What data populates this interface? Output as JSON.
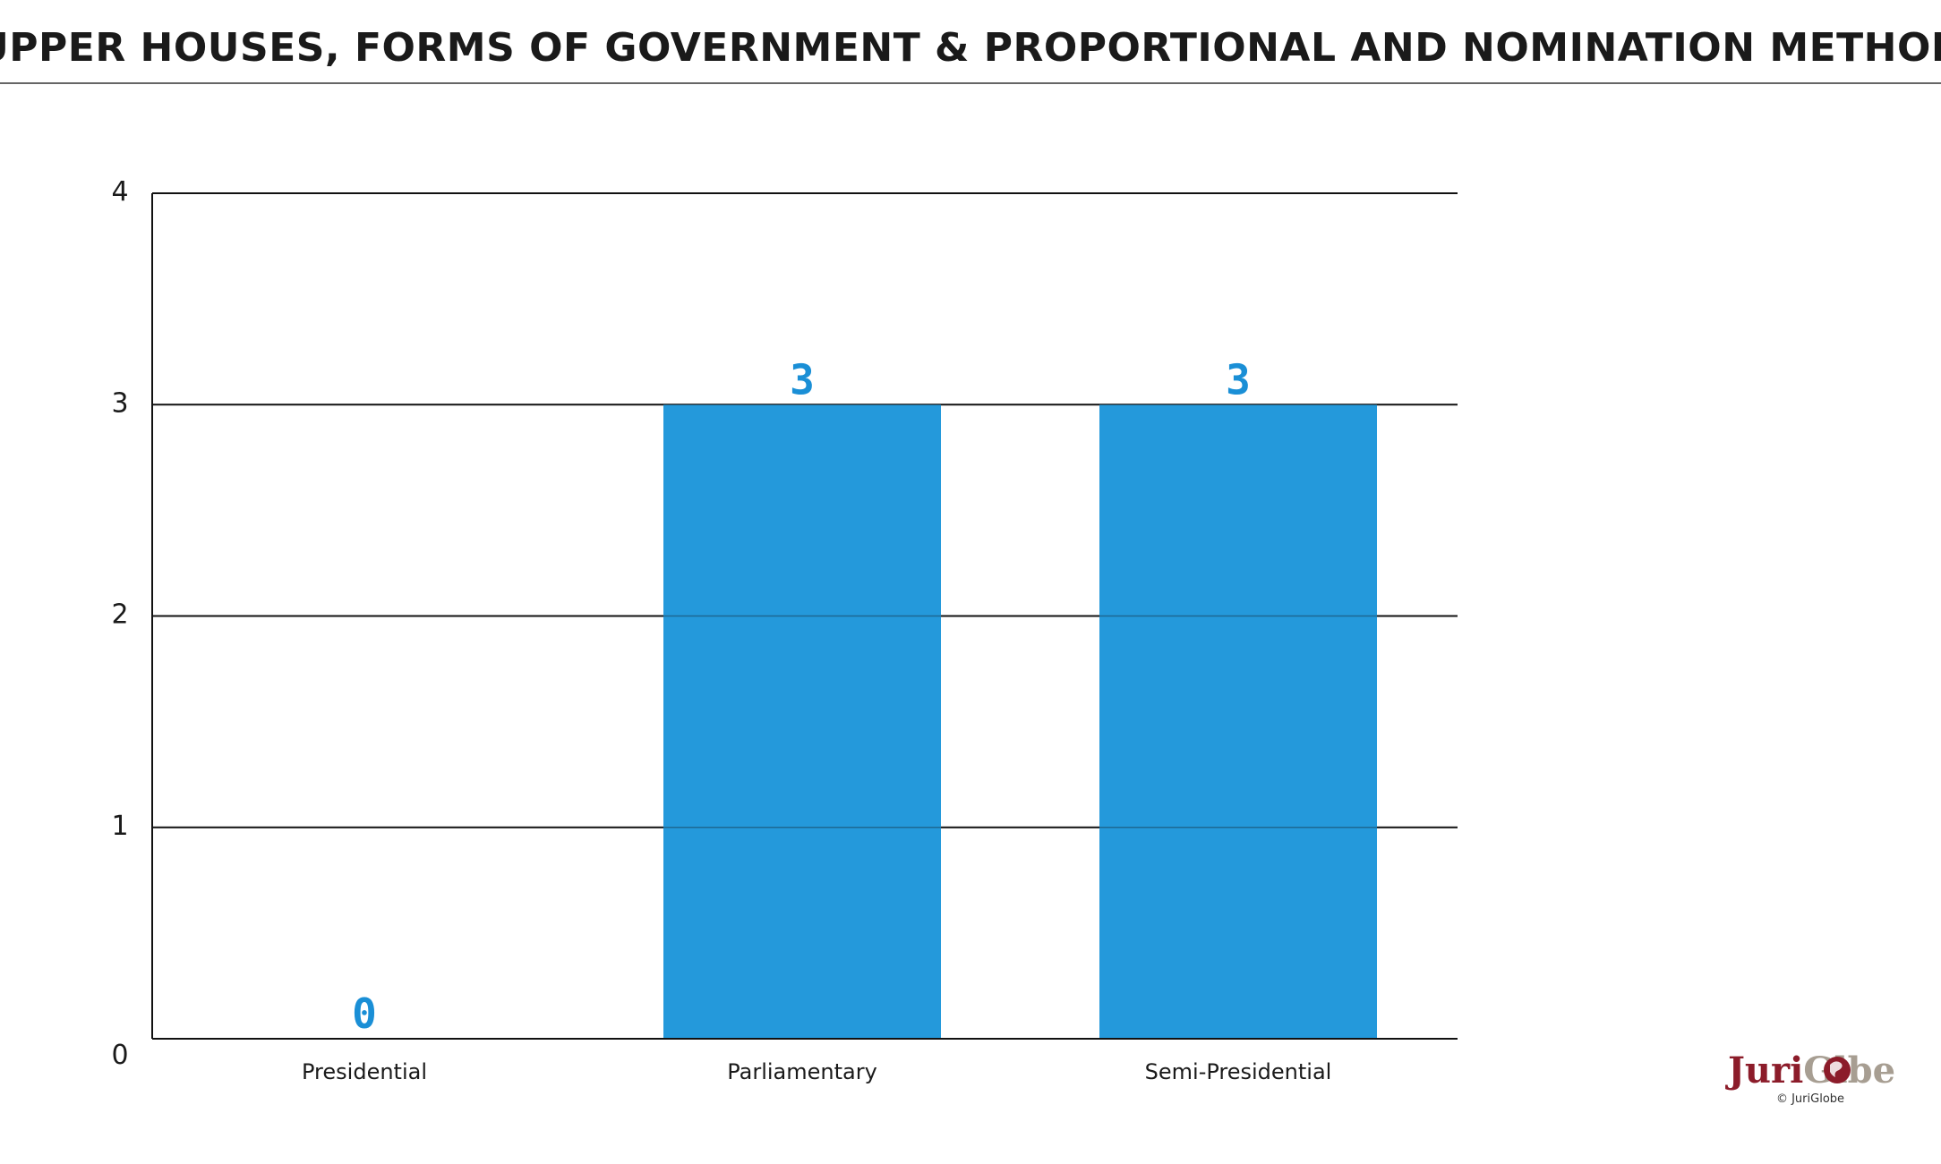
{
  "colors": {
    "bar": "#2499db",
    "value_label": "#1a8fd6",
    "grid": "#111111",
    "brand_red": "#8c1c2a",
    "brand_grey": "#a79e92"
  },
  "chart_data": {
    "type": "bar",
    "title": "UPPER HOUSES, FORMS OF GOVERNMENT & PROPORTIONAL AND NOMINATION METHOD",
    "categories": [
      "Presidential",
      "Parliamentary",
      "Semi-Presidential"
    ],
    "values": [
      0,
      3,
      3
    ],
    "ylim": [
      0,
      4
    ],
    "yticks": [
      0,
      1,
      2,
      3,
      4
    ],
    "grid": true,
    "legend": "none",
    "data_labels": true
  },
  "branding": {
    "logo_part1": "Juri",
    "logo_part2": "Gl",
    "logo_part3": "be",
    "copyright": "© JuriGlobe"
  }
}
